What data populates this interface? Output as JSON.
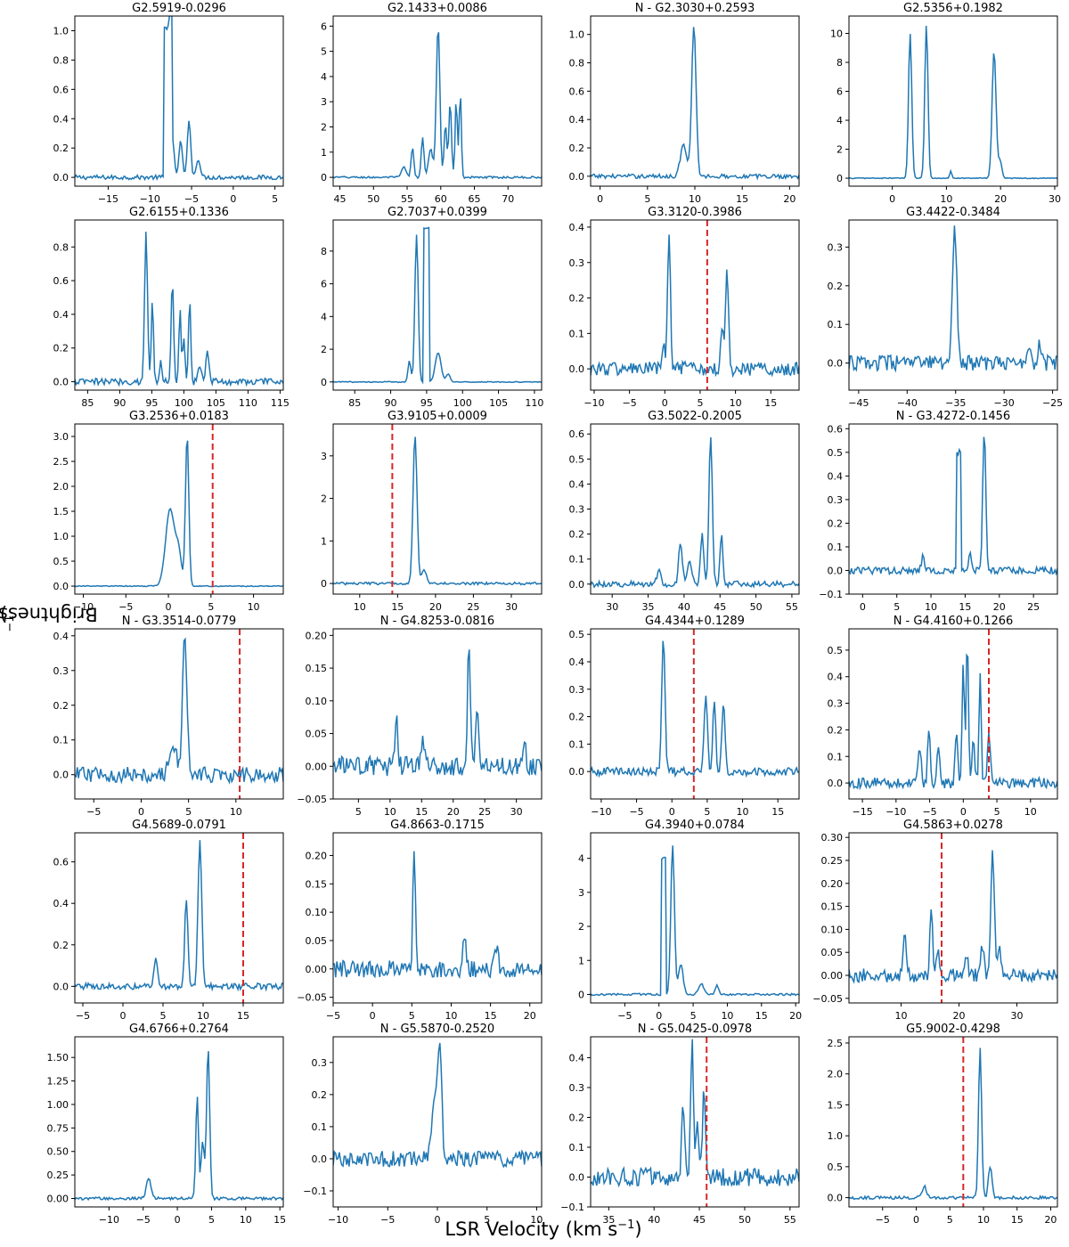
{
  "figure": {
    "ylabel_main": "Brightness (Jy beam",
    "ylabel_exp": "−1",
    "ylabel_end": ")",
    "xlabel_main": "LSR Velocity (km s",
    "xlabel_exp": "−1",
    "xlabel_end": ")"
  },
  "colors": {
    "line": "#1f77b4",
    "marker": "#d62728",
    "frame": "#000000"
  },
  "chart_data": [
    {
      "type": "line",
      "title": "G2.5919-0.0296",
      "xlim": [
        -19,
        6
      ],
      "ylim": [
        -0.06,
        1.1
      ],
      "xticks": [
        -15,
        -10,
        -5,
        0,
        5
      ],
      "yticks": [
        0.0,
        0.2,
        0.4,
        0.6,
        0.8,
        1.0
      ],
      "yfmt": 1,
      "vline": null,
      "peaks": [
        {
          "c": -7.8,
          "w": 0.5,
          "a": 1.02,
          "f": "box"
        },
        {
          "c": -7.3,
          "w": 0.35,
          "a": 0.25
        },
        {
          "c": -6.3,
          "w": 0.3,
          "a": 0.25
        },
        {
          "c": -5.3,
          "w": 0.3,
          "a": 0.4
        },
        {
          "c": -4.2,
          "w": 0.35,
          "a": 0.13
        }
      ],
      "noise": 0.015
    },
    {
      "type": "line",
      "title": "G2.1433+0.0086",
      "xlim": [
        44,
        75
      ],
      "ylim": [
        -0.35,
        6.4
      ],
      "xticks": [
        45,
        50,
        55,
        60,
        65,
        70
      ],
      "yticks": [
        0,
        1,
        2,
        3,
        4,
        5,
        6
      ],
      "yfmt": 0,
      "vline": null,
      "peaks": [
        {
          "c": 54.5,
          "w": 0.5,
          "a": 0.4
        },
        {
          "c": 55.8,
          "w": 0.3,
          "a": 1.2
        },
        {
          "c": 57.3,
          "w": 0.3,
          "a": 1.6
        },
        {
          "c": 58.5,
          "w": 0.5,
          "a": 1.1
        },
        {
          "c": 59.6,
          "w": 0.4,
          "a": 6.0
        },
        {
          "c": 60.7,
          "w": 0.3,
          "a": 2.1
        },
        {
          "c": 61.4,
          "w": 0.3,
          "a": 3.0
        },
        {
          "c": 62.3,
          "w": 0.25,
          "a": 3.1
        },
        {
          "c": 62.9,
          "w": 0.25,
          "a": 3.4
        }
      ],
      "noise": 0.04
    },
    {
      "type": "line",
      "title": "N - G2.3030+0.2593",
      "xlim": [
        -1,
        21
      ],
      "ylim": [
        -0.07,
        1.13
      ],
      "xticks": [
        0,
        5,
        10,
        15,
        20
      ],
      "yticks": [
        0.0,
        0.2,
        0.4,
        0.6,
        0.8,
        1.0
      ],
      "yfmt": 1,
      "vline": null,
      "peaks": [
        {
          "c": 8.8,
          "w": 0.5,
          "a": 0.22
        },
        {
          "c": 9.9,
          "w": 0.35,
          "a": 1.05
        }
      ],
      "noise": 0.015
    },
    {
      "type": "line",
      "title": "G2.5356+0.1982",
      "xlim": [
        -8,
        30.5
      ],
      "ylim": [
        -0.55,
        11.2
      ],
      "xticks": [
        0,
        10,
        20,
        30
      ],
      "yticks": [
        0,
        2,
        4,
        6,
        8,
        10
      ],
      "yfmt": 0,
      "vline": null,
      "peaks": [
        {
          "c": 3.3,
          "w": 0.45,
          "a": 10.0
        },
        {
          "c": 6.3,
          "w": 0.45,
          "a": 10.6
        },
        {
          "c": 10.8,
          "w": 0.3,
          "a": 0.5
        },
        {
          "c": 18.8,
          "w": 0.55,
          "a": 8.8
        },
        {
          "c": 19.9,
          "w": 0.5,
          "a": 1.2
        }
      ],
      "noise": 0.03
    },
    {
      "type": "line",
      "title": "G2.6155+0.1336",
      "xlim": [
        83,
        115.5
      ],
      "ylim": [
        -0.05,
        0.96
      ],
      "xticks": [
        85,
        90,
        95,
        100,
        105,
        110,
        115
      ],
      "yticks": [
        0.0,
        0.2,
        0.4,
        0.6,
        0.8
      ],
      "yfmt": 1,
      "vline": null,
      "peaks": [
        {
          "c": 94.1,
          "w": 0.35,
          "a": 0.88
        },
        {
          "c": 95.1,
          "w": 0.25,
          "a": 0.5
        },
        {
          "c": 96.4,
          "w": 0.3,
          "a": 0.12
        },
        {
          "c": 98.2,
          "w": 0.3,
          "a": 0.6
        },
        {
          "c": 99.4,
          "w": 0.25,
          "a": 0.42
        },
        {
          "c": 100.0,
          "w": 0.3,
          "a": 0.25
        },
        {
          "c": 100.9,
          "w": 0.25,
          "a": 0.52
        },
        {
          "c": 102.5,
          "w": 0.4,
          "a": 0.1
        },
        {
          "c": 103.7,
          "w": 0.4,
          "a": 0.18
        }
      ],
      "noise": 0.02
    },
    {
      "type": "line",
      "title": "G2.7037+0.0399",
      "xlim": [
        82,
        111
      ],
      "ylim": [
        -0.5,
        9.9
      ],
      "xticks": [
        85,
        90,
        95,
        100,
        105,
        110
      ],
      "yticks": [
        0,
        2,
        4,
        6,
        8
      ],
      "yfmt": 0,
      "vline": null,
      "peaks": [
        {
          "c": 92.6,
          "w": 0.3,
          "a": 1.3
        },
        {
          "c": 93.6,
          "w": 0.35,
          "a": 9.0
        },
        {
          "c": 95.0,
          "w": 0.45,
          "a": 9.4,
          "f": "box"
        },
        {
          "c": 96.6,
          "w": 0.6,
          "a": 1.8
        },
        {
          "c": 98.0,
          "w": 0.4,
          "a": 0.5
        }
      ],
      "noise": 0.03
    },
    {
      "type": "line",
      "title": "G3.3120-0.3986",
      "xlim": [
        -10.5,
        19
      ],
      "ylim": [
        -0.06,
        0.42
      ],
      "xticks": [
        -10,
        -5,
        0,
        5,
        10,
        15
      ],
      "yticks": [
        0.0,
        0.1,
        0.2,
        0.3,
        0.4
      ],
      "yfmt": 1,
      "vline": 6.0,
      "peaks": [
        {
          "c": -0.2,
          "w": 0.3,
          "a": 0.07
        },
        {
          "c": 0.6,
          "w": 0.3,
          "a": 0.39
        },
        {
          "c": 8.1,
          "w": 0.3,
          "a": 0.1
        },
        {
          "c": 8.8,
          "w": 0.35,
          "a": 0.28
        }
      ],
      "noise": 0.02
    },
    {
      "type": "line",
      "title": "G3.4422-0.3484",
      "xlim": [
        -46,
        -24.5
      ],
      "ylim": [
        -0.07,
        0.37
      ],
      "xticks": [
        -45,
        -40,
        -35,
        -30,
        -25
      ],
      "yticks": [
        0.0,
        0.1,
        0.2,
        0.3
      ],
      "yfmt": 1,
      "vline": null,
      "peaks": [
        {
          "c": -35.1,
          "w": 0.35,
          "a": 0.35
        },
        {
          "c": -27.5,
          "w": 0.3,
          "a": 0.05
        },
        {
          "c": -26.3,
          "w": 0.3,
          "a": 0.05
        }
      ],
      "noise": 0.02
    },
    {
      "type": "line",
      "title": "G3.2536+0.0183",
      "xlim": [
        -11,
        13.5
      ],
      "ylim": [
        -0.16,
        3.25
      ],
      "xticks": [
        -10,
        -5,
        0,
        5,
        10
      ],
      "yticks": [
        0.0,
        0.5,
        1.0,
        1.5,
        2.0,
        2.5,
        3.0
      ],
      "yfmt": 1,
      "vline": 5.2,
      "peaks": [
        {
          "c": 0.2,
          "w": 0.8,
          "a": 1.55
        },
        {
          "c": 1.2,
          "w": 0.5,
          "a": 0.6
        },
        {
          "c": 2.2,
          "w": 0.3,
          "a": 3.05
        }
      ],
      "noise": 0.01
    },
    {
      "type": "line",
      "title": "G3.9105+0.0009",
      "xlim": [
        6.5,
        34
      ],
      "ylim": [
        -0.25,
        3.75
      ],
      "xticks": [
        10,
        15,
        20,
        25,
        30
      ],
      "yticks": [
        0,
        1,
        2,
        3
      ],
      "yfmt": 0,
      "vline": 14.3,
      "peaks": [
        {
          "c": 17.3,
          "w": 0.4,
          "a": 3.5
        },
        {
          "c": 18.5,
          "w": 0.5,
          "a": 0.3
        }
      ],
      "noise": 0.03
    },
    {
      "type": "line",
      "title": "G3.5022-0.2005",
      "xlim": [
        27,
        56
      ],
      "ylim": [
        -0.04,
        0.64
      ],
      "xticks": [
        30,
        35,
        40,
        45,
        50,
        55
      ],
      "yticks": [
        0.0,
        0.1,
        0.2,
        0.3,
        0.4,
        0.5,
        0.6
      ],
      "yfmt": 1,
      "vline": null,
      "peaks": [
        {
          "c": 36.5,
          "w": 0.4,
          "a": 0.06
        },
        {
          "c": 39.5,
          "w": 0.4,
          "a": 0.16
        },
        {
          "c": 40.8,
          "w": 0.4,
          "a": 0.1
        },
        {
          "c": 42.5,
          "w": 0.35,
          "a": 0.2
        },
        {
          "c": 43.7,
          "w": 0.35,
          "a": 0.6
        },
        {
          "c": 45.2,
          "w": 0.3,
          "a": 0.2
        }
      ],
      "noise": 0.012
    },
    {
      "type": "line",
      "title": "N - G3.4272-0.1456",
      "xlim": [
        -2,
        28.5
      ],
      "ylim": [
        -0.1,
        0.62
      ],
      "xticks": [
        0,
        5,
        10,
        15,
        20,
        25
      ],
      "yticks": [
        -0.1,
        0.0,
        0.1,
        0.2,
        0.3,
        0.4,
        0.5,
        0.6
      ],
      "yfmt": 1,
      "vline": null,
      "peaks": [
        {
          "c": 8.8,
          "w": 0.3,
          "a": 0.06
        },
        {
          "c": 14.0,
          "w": 0.35,
          "a": 0.5,
          "f": "box"
        },
        {
          "c": 15.7,
          "w": 0.3,
          "a": 0.08
        },
        {
          "c": 17.8,
          "w": 0.35,
          "a": 0.58
        }
      ],
      "noise": 0.015
    },
    {
      "type": "line",
      "title": "N - G3.3514-0.0779",
      "xlim": [
        -7,
        15
      ],
      "ylim": [
        -0.07,
        0.42
      ],
      "xticks": [
        -5,
        0,
        5,
        10
      ],
      "yticks": [
        0.0,
        0.1,
        0.2,
        0.3,
        0.4
      ],
      "yfmt": 1,
      "vline": 10.4,
      "peaks": [
        {
          "c": 3.4,
          "w": 0.6,
          "a": 0.08
        },
        {
          "c": 4.6,
          "w": 0.35,
          "a": 0.39
        }
      ],
      "noise": 0.022
    },
    {
      "type": "line",
      "title": "N - G4.8253-0.0816",
      "xlim": [
        1,
        34
      ],
      "ylim": [
        -0.05,
        0.21
      ],
      "xticks": [
        5,
        10,
        15,
        20,
        25,
        30
      ],
      "yticks": [
        -0.05,
        0.0,
        0.05,
        0.1,
        0.15,
        0.2
      ],
      "yfmt": 2,
      "vline": null,
      "peaks": [
        {
          "c": 11.0,
          "w": 0.35,
          "a": 0.07
        },
        {
          "c": 15.2,
          "w": 0.4,
          "a": 0.04
        },
        {
          "c": 22.5,
          "w": 0.35,
          "a": 0.19
        },
        {
          "c": 23.8,
          "w": 0.45,
          "a": 0.08
        },
        {
          "c": 31.3,
          "w": 0.35,
          "a": 0.03
        }
      ],
      "noise": 0.015
    },
    {
      "type": "line",
      "title": "G4.4344+0.1289",
      "xlim": [
        -11.5,
        18
      ],
      "ylim": [
        -0.1,
        0.52
      ],
      "xticks": [
        -10,
        -5,
        0,
        5,
        10,
        15
      ],
      "yticks": [
        0.0,
        0.1,
        0.2,
        0.3,
        0.4,
        0.5
      ],
      "yfmt": 1,
      "vline": 3.1,
      "peaks": [
        {
          "c": -1.2,
          "w": 0.35,
          "a": 0.48
        },
        {
          "c": 4.8,
          "w": 0.35,
          "a": 0.28
        },
        {
          "c": 6.0,
          "w": 0.3,
          "a": 0.27
        },
        {
          "c": 7.3,
          "w": 0.35,
          "a": 0.25
        }
      ],
      "noise": 0.015
    },
    {
      "type": "line",
      "title": "N - G4.4160+0.1266",
      "xlim": [
        -17,
        14
      ],
      "ylim": [
        -0.06,
        0.58
      ],
      "xticks": [
        -15,
        -10,
        -5,
        0,
        5,
        10
      ],
      "yticks": [
        0.0,
        0.1,
        0.2,
        0.3,
        0.4,
        0.5
      ],
      "yfmt": 1,
      "vline": 3.8,
      "peaks": [
        {
          "c": -6.5,
          "w": 0.35,
          "a": 0.14
        },
        {
          "c": -5.1,
          "w": 0.3,
          "a": 0.2
        },
        {
          "c": -3.7,
          "w": 0.3,
          "a": 0.15
        },
        {
          "c": -1.0,
          "w": 0.3,
          "a": 0.2
        },
        {
          "c": 0.0,
          "w": 0.25,
          "a": 0.45
        },
        {
          "c": 0.6,
          "w": 0.25,
          "a": 0.55
        },
        {
          "c": 1.5,
          "w": 0.3,
          "a": 0.18
        },
        {
          "c": 2.5,
          "w": 0.25,
          "a": 0.42
        },
        {
          "c": 3.8,
          "w": 0.35,
          "a": 0.18
        }
      ],
      "noise": 0.02
    },
    {
      "type": "line",
      "title": "G4.5689-0.0791",
      "xlim": [
        -6,
        20
      ],
      "ylim": [
        -0.08,
        0.74
      ],
      "xticks": [
        -5,
        0,
        5,
        10,
        15
      ],
      "yticks": [
        0.0,
        0.2,
        0.4,
        0.6
      ],
      "yfmt": 1,
      "vline": 15.0,
      "peaks": [
        {
          "c": 4.1,
          "w": 0.35,
          "a": 0.14
        },
        {
          "c": 7.9,
          "w": 0.3,
          "a": 0.42
        },
        {
          "c": 9.6,
          "w": 0.35,
          "a": 0.7
        }
      ],
      "noise": 0.015
    },
    {
      "type": "line",
      "title": "G4.8663-0.1715",
      "xlim": [
        -5,
        21.5
      ],
      "ylim": [
        -0.06,
        0.24
      ],
      "xticks": [
        -5,
        0,
        5,
        10,
        15,
        20
      ],
      "yticks": [
        -0.05,
        0.0,
        0.05,
        0.1,
        0.15,
        0.2
      ],
      "yfmt": 2,
      "vline": null,
      "peaks": [
        {
          "c": 5.3,
          "w": 0.25,
          "a": 0.22
        },
        {
          "c": 11.7,
          "w": 0.3,
          "a": 0.06
        },
        {
          "c": 15.7,
          "w": 0.35,
          "a": 0.04
        }
      ],
      "noise": 0.015
    },
    {
      "type": "line",
      "title": "G4.3940+0.0784",
      "xlim": [
        -10,
        20.5
      ],
      "ylim": [
        -0.25,
        4.75
      ],
      "xticks": [
        -5,
        0,
        5,
        10,
        15,
        20
      ],
      "yticks": [
        0,
        1,
        2,
        3,
        4
      ],
      "yfmt": 0,
      "vline": null,
      "peaks": [
        {
          "c": 0.7,
          "w": 0.4,
          "a": 4.0,
          "f": "box"
        },
        {
          "c": 2.0,
          "w": 0.4,
          "a": 4.4
        },
        {
          "c": 3.2,
          "w": 0.5,
          "a": 0.9
        },
        {
          "c": 6.2,
          "w": 0.6,
          "a": 0.3
        },
        {
          "c": 8.5,
          "w": 0.4,
          "a": 0.25
        }
      ],
      "noise": 0.03
    },
    {
      "type": "line",
      "title": "G4.5863+0.0278",
      "xlim": [
        1,
        37
      ],
      "ylim": [
        -0.06,
        0.31
      ],
      "xticks": [
        10,
        20,
        30
      ],
      "yticks": [
        -0.05,
        0.0,
        0.05,
        0.1,
        0.15,
        0.2,
        0.25,
        0.3
      ],
      "yfmt": 2,
      "vline": 17.0,
      "peaks": [
        {
          "c": 10.6,
          "w": 0.4,
          "a": 0.1
        },
        {
          "c": 15.2,
          "w": 0.35,
          "a": 0.15
        },
        {
          "c": 16.3,
          "w": 0.3,
          "a": 0.06
        },
        {
          "c": 21.3,
          "w": 0.4,
          "a": 0.05
        },
        {
          "c": 24.0,
          "w": 0.5,
          "a": 0.06
        },
        {
          "c": 25.8,
          "w": 0.45,
          "a": 0.28
        },
        {
          "c": 27.0,
          "w": 0.6,
          "a": 0.05
        }
      ],
      "noise": 0.015
    },
    {
      "type": "line",
      "title": "G4.6766+0.2764",
      "xlim": [
        -15,
        15.5
      ],
      "ylim": [
        -0.09,
        1.72
      ],
      "xticks": [
        -10,
        -5,
        0,
        5,
        10,
        15
      ],
      "yticks": [
        0.0,
        0.25,
        0.5,
        0.75,
        1.0,
        1.25,
        1.5
      ],
      "yfmt": 2,
      "vline": null,
      "peaks": [
        {
          "c": -4.2,
          "w": 0.5,
          "a": 0.22
        },
        {
          "c": 2.9,
          "w": 0.3,
          "a": 1.1
        },
        {
          "c": 3.7,
          "w": 0.35,
          "a": 0.6
        },
        {
          "c": 4.5,
          "w": 0.35,
          "a": 1.6
        }
      ],
      "noise": 0.015
    },
    {
      "type": "line",
      "title": "N - G5.5870-0.2520",
      "xlim": [
        -10.5,
        10.5
      ],
      "ylim": [
        -0.15,
        0.38
      ],
      "xticks": [
        -10,
        -5,
        0,
        5,
        10
      ],
      "yticks": [
        -0.1,
        0.0,
        0.1,
        0.2,
        0.3
      ],
      "yfmt": 1,
      "vline": null,
      "peaks": [
        {
          "c": -0.3,
          "w": 0.4,
          "a": 0.2
        },
        {
          "c": 0.25,
          "w": 0.3,
          "a": 0.33
        }
      ],
      "noise": 0.025
    },
    {
      "type": "line",
      "title": "N - G5.0425-0.0978",
      "xlim": [
        33,
        56
      ],
      "ylim": [
        -0.1,
        0.47
      ],
      "xticks": [
        35,
        40,
        45,
        50,
        55
      ],
      "yticks": [
        -0.1,
        0.0,
        0.1,
        0.2,
        0.3,
        0.4
      ],
      "yfmt": 1,
      "vline": 45.8,
      "peaks": [
        {
          "c": 43.2,
          "w": 0.25,
          "a": 0.26
        },
        {
          "c": 44.2,
          "w": 0.25,
          "a": 0.44
        },
        {
          "c": 44.8,
          "w": 0.2,
          "a": 0.2
        },
        {
          "c": 45.5,
          "w": 0.25,
          "a": 0.3
        }
      ],
      "noise": 0.03
    },
    {
      "type": "line",
      "title": "G5.9002-0.4298",
      "xlim": [
        -10,
        21
      ],
      "ylim": [
        -0.15,
        2.6
      ],
      "xticks": [
        -5,
        0,
        5,
        10,
        15,
        20
      ],
      "yticks": [
        0.0,
        0.5,
        1.0,
        1.5,
        2.0,
        2.5
      ],
      "yfmt": 1,
      "vline": 7.0,
      "peaks": [
        {
          "c": 1.2,
          "w": 0.5,
          "a": 0.18
        },
        {
          "c": 9.5,
          "w": 0.35,
          "a": 2.4
        },
        {
          "c": 11.0,
          "w": 0.4,
          "a": 0.5
        }
      ],
      "noise": 0.025
    }
  ]
}
